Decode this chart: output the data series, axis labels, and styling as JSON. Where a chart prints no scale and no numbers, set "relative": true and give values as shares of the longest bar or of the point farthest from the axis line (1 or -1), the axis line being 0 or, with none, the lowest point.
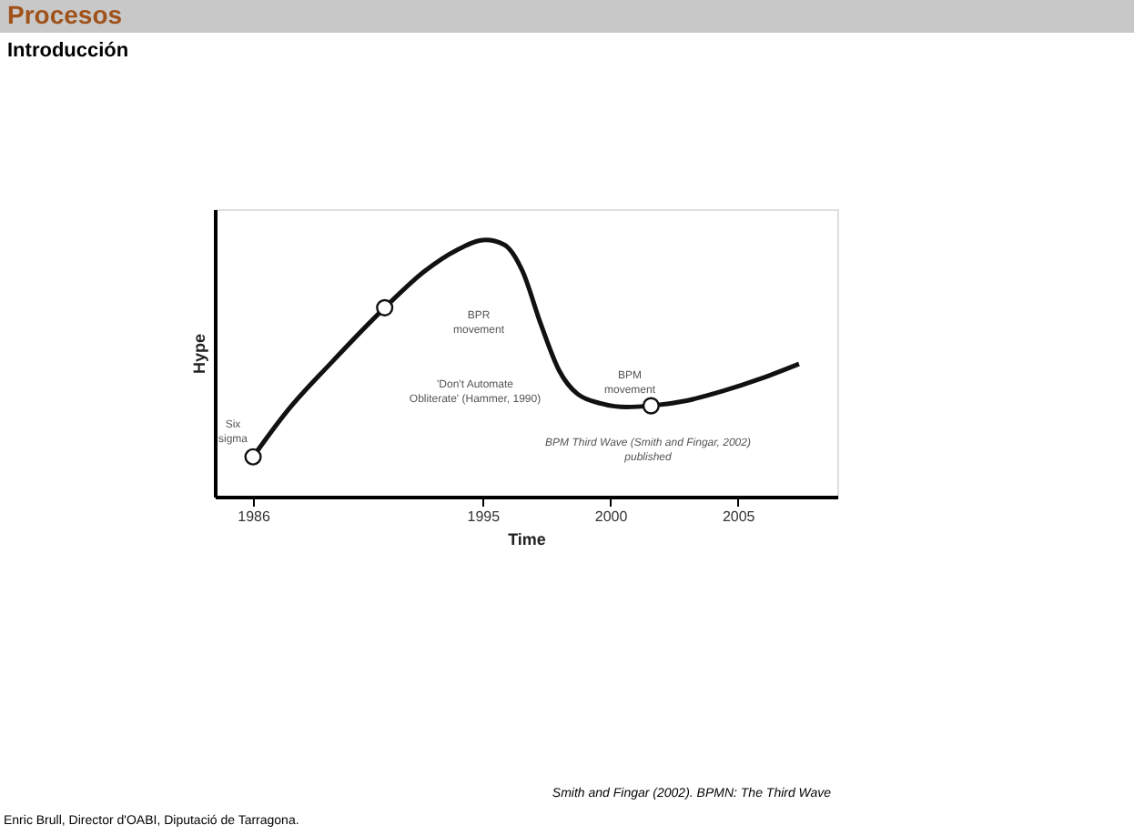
{
  "chart_data": {
    "type": "line",
    "title": "Procesos",
    "subtitle": "Introducción",
    "xlabel": "Time",
    "ylabel": "Hype",
    "relative": true,
    "xlim": [
      1984.5,
      2008.9
    ],
    "xticks": [
      1986,
      1995,
      2000,
      2005
    ],
    "tick_labels": "x",
    "grid": false,
    "series": [
      {
        "color": "#111111",
        "line_style": "solid",
        "x": [
          1986,
          1987.36,
          1989.02,
          1991.16,
          1992.73,
          1993.97,
          1995.12,
          1995.84,
          1996.56,
          1997.28,
          1998.0,
          1998.72,
          1999.68,
          2000.63,
          2001.6,
          2003.04,
          2004.47,
          2005.91,
          2007.4
        ],
        "values": [
          0.155,
          0.336,
          0.517,
          0.736,
          0.879,
          0.96,
          1.0,
          0.982,
          0.879,
          0.672,
          0.491,
          0.4,
          0.362,
          0.349,
          0.354,
          0.375,
          0.413,
          0.46,
          0.517
        ]
      },
      {
        "type": "scatter",
        "marker": "circle",
        "color": "#111111",
        "x": [
          1986,
          1991.16,
          2001.6
        ],
        "values": [
          0.155,
          0.736,
          0.354
        ]
      }
    ],
    "annotations": [
      "Six\nsigma",
      "BPR\nmovement",
      "'Don't Automate\nObliterate' (Hammer, 1990)",
      "BPM\nmovement",
      "BPM Third Wave (Smith and Fingar, 2002)\npublished",
      "Smith and Fingar (2002). BPMN: The Third Wave",
      "Enric Brull, Director d'OABI, Diputació de Tarragona."
    ]
  }
}
